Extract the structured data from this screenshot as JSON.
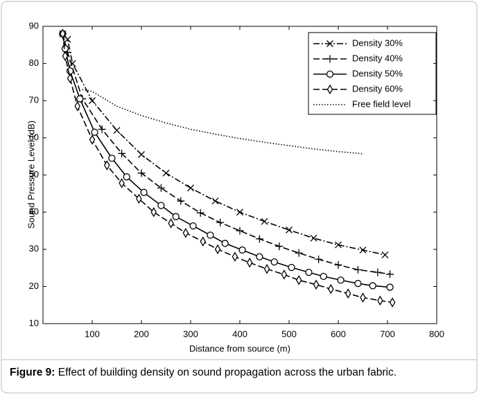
{
  "chart_data": {
    "type": "line",
    "caption": {
      "label": "Figure 9:",
      "text": "Effect of building density on sound propagation across the urban fabric."
    },
    "xlabel": "Distance from source (m)",
    "ylabel": "Sound Pressure Level (dB)",
    "xlim": [
      0,
      800
    ],
    "xticks": [
      100,
      200,
      300,
      400,
      500,
      600,
      700,
      800
    ],
    "ylim": [
      10,
      90
    ],
    "yticks": [
      10,
      20,
      30,
      40,
      50,
      60,
      70,
      80,
      90
    ],
    "legend": "upper right",
    "series": [
      {
        "name": "Density 30%",
        "color": "#000000",
        "marker": "x",
        "style": "dashdot",
        "x": [
          40,
          50,
          60,
          100,
          150,
          200,
          250,
          300,
          350,
          400,
          450,
          500,
          550,
          600,
          650,
          695
        ],
        "values": [
          88,
          86.5,
          80,
          70,
          62,
          55.5,
          50.5,
          46.5,
          43,
          40,
          37.5,
          35.2,
          33,
          31.2,
          29.8,
          28.5
        ]
      },
      {
        "name": "Density 40%",
        "color": "#000000",
        "marker": "+",
        "style": "dashed",
        "x": [
          40,
          50,
          80,
          120,
          160,
          200,
          240,
          280,
          320,
          360,
          400,
          440,
          480,
          520,
          560,
          600,
          640,
          680,
          705
        ],
        "values": [
          88,
          83,
          70.5,
          62.3,
          55.8,
          50.5,
          46.5,
          43,
          39.8,
          37.2,
          35,
          32.8,
          30.8,
          29,
          27.3,
          25.8,
          24.5,
          23.8,
          23.3
        ]
      },
      {
        "name": "Density 50%",
        "color": "#000000",
        "marker": "o",
        "style": "solid",
        "x": [
          40,
          45,
          55,
          75,
          105,
          140,
          170,
          205,
          240,
          270,
          305,
          340,
          370,
          405,
          440,
          470,
          505,
          540,
          570,
          605,
          640,
          670,
          705
        ],
        "values": [
          88,
          84,
          78,
          70.5,
          61.5,
          54.5,
          49.5,
          45.3,
          41.8,
          38.8,
          36.3,
          33.8,
          31.6,
          29.8,
          28,
          26.6,
          25.1,
          23.8,
          22.7,
          21.7,
          20.8,
          20.2,
          19.8
        ]
      },
      {
        "name": "Density 60%",
        "color": "#000000",
        "marker": "d",
        "style": "dashed",
        "x": [
          40,
          45,
          55,
          70,
          100,
          130,
          160,
          195,
          225,
          260,
          290,
          325,
          355,
          390,
          420,
          455,
          490,
          520,
          555,
          585,
          620,
          650,
          685,
          710
        ],
        "values": [
          88,
          82,
          76,
          68.5,
          59.5,
          52.6,
          47.8,
          43.6,
          40,
          37,
          34.4,
          32.1,
          30,
          28,
          26.4,
          24.7,
          23.2,
          21.7,
          20.5,
          19.3,
          18.1,
          17,
          16.2,
          15.7
        ]
      },
      {
        "name": "Free field level",
        "color": "#000000",
        "style": "dotted",
        "x": [
          80,
          100,
          150,
          200,
          250,
          300,
          350,
          400,
          450,
          500,
          550,
          600,
          650
        ],
        "values": [
          73,
          72.5,
          68.5,
          66,
          64,
          62.3,
          61,
          59.8,
          58.8,
          57.9,
          57,
          56.3,
          55.7
        ]
      }
    ]
  }
}
